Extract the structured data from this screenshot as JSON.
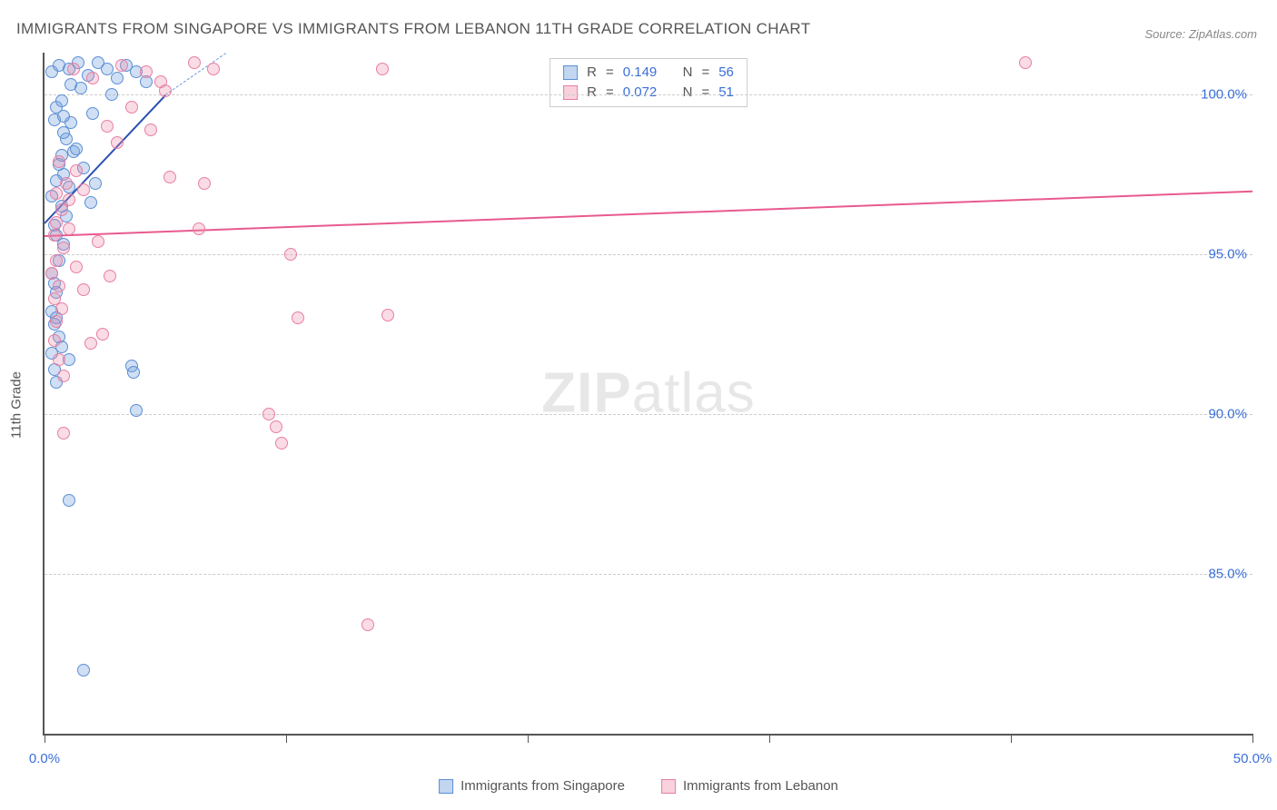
{
  "title": "IMMIGRANTS FROM SINGAPORE VS IMMIGRANTS FROM LEBANON 11TH GRADE CORRELATION CHART",
  "source": "Source: ZipAtlas.com",
  "y_axis_title": "11th Grade",
  "watermark_bold": "ZIP",
  "watermark_rest": "atlas",
  "chart": {
    "type": "scatter",
    "x_min": 0.0,
    "x_max": 50.0,
    "y_min": 80.0,
    "y_max": 101.3,
    "y_gridlines": [
      85.0,
      90.0,
      95.0,
      100.0
    ],
    "y_tick_labels": [
      "85.0%",
      "90.0%",
      "95.0%",
      "100.0%"
    ],
    "x_ticks": [
      0.0,
      10.0,
      20.0,
      30.0,
      40.0,
      50.0
    ],
    "x_tick_labels": {
      "0": "0.0%",
      "50": "50.0%"
    },
    "grid_color": "#cccccc",
    "axis_color": "#555555",
    "background": "#ffffff",
    "series": [
      {
        "name": "Immigrants from Singapore",
        "color_key": "blue",
        "fill": "rgba(120,163,221,0.35)",
        "stroke": "#5b8fd6",
        "r_value": "0.149",
        "n_value": "56",
        "trend": {
          "x1": 0.0,
          "y1": 96.0,
          "x2": 5.0,
          "y2": 100.0,
          "color": "#2a4fb0",
          "width": 2.5,
          "dash": false
        },
        "trend_ext": {
          "x1": 5.0,
          "y1": 100.0,
          "x2": 7.5,
          "y2": 101.3,
          "color": "#6f9ae0",
          "width": 1.2,
          "dash": true
        },
        "points": [
          [
            0.3,
            100.7
          ],
          [
            0.6,
            100.9
          ],
          [
            1.0,
            100.8
          ],
          [
            1.4,
            101.0
          ],
          [
            1.8,
            100.6
          ],
          [
            2.2,
            101.0
          ],
          [
            2.6,
            100.8
          ],
          [
            3.0,
            100.5
          ],
          [
            3.4,
            100.9
          ],
          [
            3.8,
            100.7
          ],
          [
            4.2,
            100.4
          ],
          [
            0.4,
            99.2
          ],
          [
            0.5,
            99.6
          ],
          [
            0.7,
            99.8
          ],
          [
            1.1,
            99.1
          ],
          [
            0.9,
            98.6
          ],
          [
            1.2,
            98.2
          ],
          [
            0.6,
            97.8
          ],
          [
            0.8,
            97.5
          ],
          [
            1.0,
            97.1
          ],
          [
            0.5,
            97.3
          ],
          [
            0.3,
            96.8
          ],
          [
            0.7,
            96.5
          ],
          [
            0.9,
            96.2
          ],
          [
            0.4,
            95.9
          ],
          [
            0.5,
            95.6
          ],
          [
            0.8,
            95.3
          ],
          [
            0.6,
            94.8
          ],
          [
            0.3,
            94.4
          ],
          [
            0.4,
            94.1
          ],
          [
            0.5,
            93.8
          ],
          [
            0.3,
            93.2
          ],
          [
            0.4,
            92.8
          ],
          [
            0.6,
            92.4
          ],
          [
            0.3,
            91.9
          ],
          [
            0.4,
            91.4
          ],
          [
            0.5,
            91.0
          ],
          [
            2.8,
            100.0
          ],
          [
            3.6,
            91.5
          ],
          [
            3.7,
            91.3
          ],
          [
            2.0,
            99.4
          ],
          [
            1.3,
            98.3
          ],
          [
            1.6,
            97.7
          ],
          [
            2.1,
            97.2
          ],
          [
            1.9,
            96.6
          ],
          [
            1.5,
            100.2
          ],
          [
            3.8,
            90.1
          ],
          [
            1.0,
            87.3
          ],
          [
            1.6,
            82.0
          ],
          [
            0.7,
            98.1
          ],
          [
            0.8,
            99.3
          ],
          [
            0.8,
            98.8
          ],
          [
            1.1,
            100.3
          ],
          [
            0.5,
            93.0
          ],
          [
            0.7,
            92.1
          ],
          [
            1.0,
            91.7
          ]
        ]
      },
      {
        "name": "Immigrants from Lebanon",
        "color_key": "pink",
        "fill": "rgba(238,140,170,0.30)",
        "stroke": "#e77fa3",
        "r_value": "0.072",
        "n_value": "51",
        "trend": {
          "x1": 0.0,
          "y1": 95.6,
          "x2": 50.0,
          "y2": 97.0,
          "color": "#e85a8f",
          "width": 2.5,
          "dash": false
        },
        "points": [
          [
            1.2,
            100.8
          ],
          [
            2.0,
            100.5
          ],
          [
            3.2,
            100.9
          ],
          [
            4.2,
            100.7
          ],
          [
            4.8,
            100.4
          ],
          [
            6.2,
            101.0
          ],
          [
            7.0,
            100.8
          ],
          [
            0.6,
            97.9
          ],
          [
            0.9,
            97.2
          ],
          [
            1.3,
            97.6
          ],
          [
            1.6,
            97.0
          ],
          [
            0.7,
            96.4
          ],
          [
            1.0,
            96.7
          ],
          [
            0.5,
            96.0
          ],
          [
            0.4,
            95.6
          ],
          [
            0.8,
            95.2
          ],
          [
            0.5,
            94.8
          ],
          [
            0.3,
            94.4
          ],
          [
            0.6,
            94.0
          ],
          [
            0.4,
            93.6
          ],
          [
            0.7,
            93.3
          ],
          [
            0.5,
            92.9
          ],
          [
            2.2,
            95.4
          ],
          [
            2.6,
            99.0
          ],
          [
            3.0,
            98.5
          ],
          [
            3.6,
            99.6
          ],
          [
            6.4,
            95.8
          ],
          [
            5.2,
            97.4
          ],
          [
            6.6,
            97.2
          ],
          [
            10.2,
            95.0
          ],
          [
            14.0,
            100.8
          ],
          [
            10.5,
            93.0
          ],
          [
            9.6,
            89.6
          ],
          [
            9.8,
            89.1
          ],
          [
            14.2,
            93.1
          ],
          [
            9.3,
            90.0
          ],
          [
            0.8,
            89.4
          ],
          [
            2.4,
            92.5
          ],
          [
            13.4,
            83.4
          ],
          [
            40.6,
            101.0
          ],
          [
            1.0,
            95.8
          ],
          [
            1.3,
            94.6
          ],
          [
            1.6,
            93.9
          ],
          [
            0.4,
            92.3
          ],
          [
            0.6,
            91.7
          ],
          [
            0.8,
            91.2
          ],
          [
            4.4,
            98.9
          ],
          [
            5.0,
            100.1
          ],
          [
            1.9,
            92.2
          ],
          [
            2.7,
            94.3
          ],
          [
            0.5,
            96.9
          ]
        ]
      }
    ]
  },
  "legend_top": {
    "r_label": "R",
    "n_label": "N",
    "eq": "="
  },
  "legend_bottom": {
    "series1": "Immigrants from Singapore",
    "series2": "Immigrants from Lebanon"
  }
}
